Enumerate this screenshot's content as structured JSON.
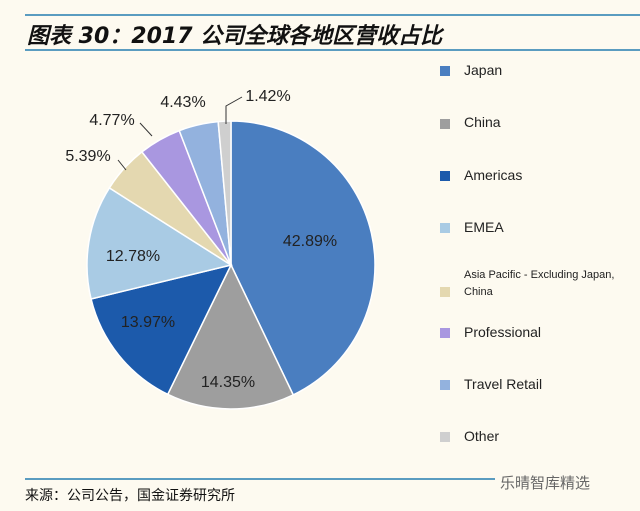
{
  "title": "图表 30：2017 公司全球各地区营收占比",
  "source": "来源：公司公告，国金证券研究所",
  "watermark": "乐晴智库精选",
  "chart_data": {
    "type": "pie",
    "start": "top",
    "direction": "clockwise",
    "legend_position": "right",
    "categories": [
      "Japan",
      "China",
      "Americas",
      "EMEA",
      "Asia Pacific - Excluding Japan, China",
      "Professional",
      "Travel Retail",
      "Other"
    ],
    "values": [
      42.89,
      14.35,
      13.97,
      12.78,
      5.39,
      4.77,
      4.43,
      1.42
    ],
    "labels": [
      "42.89%",
      "14.35%",
      "13.97%",
      "12.78%",
      "5.39%",
      "4.77%",
      "4.43%",
      "1.42%"
    ],
    "colors": [
      "#4a7ec0",
      "#9e9e9e",
      "#1c5aab",
      "#a9cbe4",
      "#e4d8b0",
      "#a997e0",
      "#93b2de",
      "#cfcfcf"
    ]
  }
}
